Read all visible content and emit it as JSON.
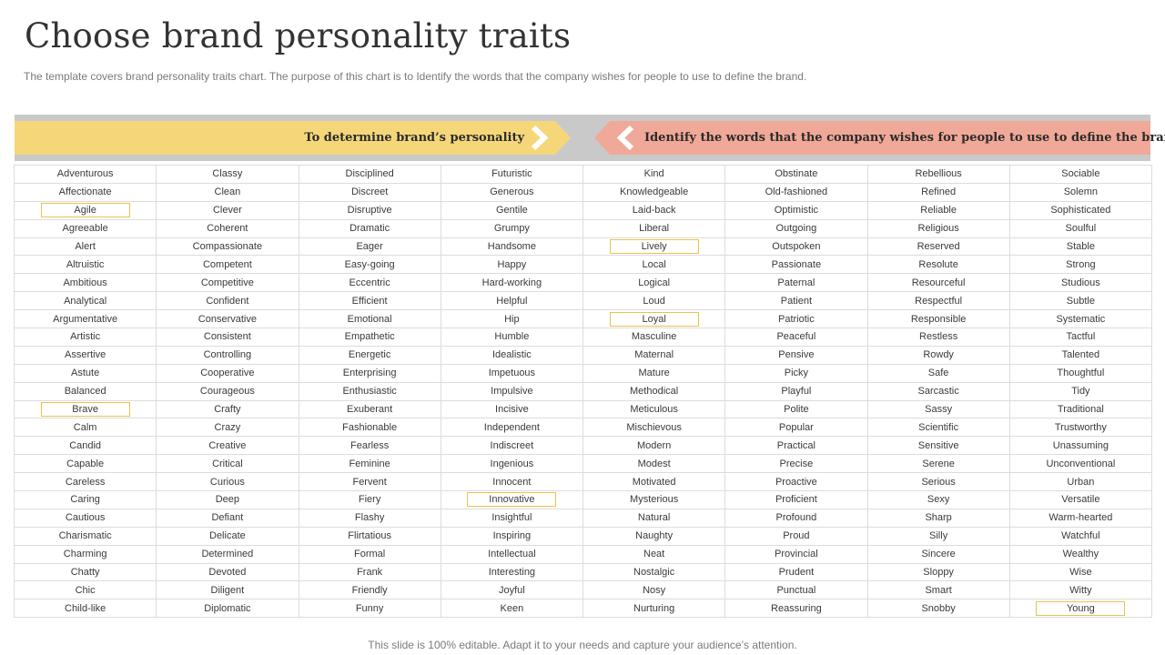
{
  "title": "Choose brand personality traits",
  "subtitle": "The template covers brand personality traits chart. The purpose of this chart is to Identify the words that the company wishes for people to use to define the brand.",
  "banner": {
    "left_label": "To determine brand’s personality",
    "right_label": "Identify the words that the company wishes for people to use to define the brand",
    "left_color": "#f5d77a",
    "right_color": "#f0a898",
    "band_color": "#c9c9c9",
    "arrow_icon_left": "chevron-right-icon",
    "arrow_icon_right": "chevron-left-icon"
  },
  "highlight_color": "#e8c44a",
  "columns": [
    {
      "words": [
        "Adventurous",
        "Affectionate",
        "Agile",
        "Agreeable",
        "Alert",
        "Altruistic",
        "Ambitious",
        "Analytical",
        "Argumentative",
        "Artistic",
        "Assertive",
        "Astute",
        "Balanced",
        "Brave",
        "Calm",
        "Candid",
        "Capable",
        "Careless",
        "Caring",
        "Cautious",
        "Charismatic",
        "Charming",
        "Chatty",
        "Chic",
        "Child-like"
      ],
      "highlighted": [
        "Agile",
        "Brave"
      ]
    },
    {
      "words": [
        "Classy",
        "Clean",
        "Clever",
        "Coherent",
        "Compassionate",
        "Competent",
        "Competitive",
        "Confident",
        "Conservative",
        "Consistent",
        "Controlling",
        "Cooperative",
        "Courageous",
        "Crafty",
        "Crazy",
        "Creative",
        "Critical",
        "Curious",
        "Deep",
        "Defiant",
        "Delicate",
        "Determined",
        "Devoted",
        "Diligent",
        "Diplomatic"
      ],
      "highlighted": []
    },
    {
      "words": [
        "Disciplined",
        "Discreet",
        "Disruptive",
        "Dramatic",
        "Eager",
        "Easy-going",
        "Eccentric",
        "Efficient",
        "Emotional",
        "Empathetic",
        "Energetic",
        "Enterprising",
        "Enthusiastic",
        "Exuberant",
        "Fashionable",
        "Fearless",
        "Feminine",
        "Fervent",
        "Fiery",
        "Flashy",
        "Flirtatious",
        "Formal",
        "Frank",
        "Friendly",
        "Funny"
      ],
      "highlighted": []
    },
    {
      "words": [
        "Futuristic",
        "Generous",
        "Gentile",
        "Grumpy",
        "Handsome",
        "Happy",
        "Hard-working",
        "Helpful",
        "Hip",
        "Humble",
        "Idealistic",
        "Impetuous",
        "Impulsive",
        "Incisive",
        "Independent",
        "Indiscreet",
        "Ingenious",
        "Innocent",
        "Innovative",
        "Insightful",
        "Inspiring",
        "Intellectual",
        "Interesting",
        "Joyful",
        "Keen"
      ],
      "highlighted": [
        "Innovative"
      ]
    },
    {
      "words": [
        "Kind",
        "Knowledgeable",
        "Laid-back",
        "Liberal",
        "Lively",
        "Local",
        "Logical",
        "Loud",
        "Loyal",
        "Masculine",
        "Maternal",
        "Mature",
        "Methodical",
        "Meticulous",
        "Mischievous",
        "Modern",
        "Modest",
        "Motivated",
        "Mysterious",
        "Natural",
        "Naughty",
        "Neat",
        "Nostalgic",
        "Nosy",
        "Nurturing"
      ],
      "highlighted": [
        "Lively",
        "Loyal"
      ]
    },
    {
      "words": [
        "Obstinate",
        "Old-fashioned",
        "Optimistic",
        "Outgoing",
        "Outspoken",
        "Passionate",
        "Paternal",
        "Patient",
        "Patriotic",
        "Peaceful",
        "Pensive",
        "Picky",
        "Playful",
        "Polite",
        "Popular",
        "Practical",
        "Precise",
        "Proactive",
        "Proficient",
        "Profound",
        "Proud",
        "Provincial",
        "Prudent",
        "Punctual",
        "Reassuring"
      ],
      "highlighted": []
    },
    {
      "words": [
        "Rebellious",
        "Refined",
        "Reliable",
        "Religious",
        "Reserved",
        "Resolute",
        "Resourceful",
        "Respectful",
        "Responsible",
        "Restless",
        "Rowdy",
        "Safe",
        "Sarcastic",
        "Sassy",
        "Scientific",
        "Sensitive",
        "Serene",
        "Serious",
        "Sexy",
        "Sharp",
        "Silly",
        "Sincere",
        "Sloppy",
        "Smart",
        "Snobby"
      ],
      "highlighted": []
    },
    {
      "words": [
        "Sociable",
        "Solemn",
        "Sophisticated",
        "Soulful",
        "Stable",
        "Strong",
        "Studious",
        "Subtle",
        "Systematic",
        "Tactful",
        "Talented",
        "Thoughtful",
        "Tidy",
        "Traditional",
        "Trustworthy",
        "Unassuming",
        "Unconventional",
        "Urban",
        "Versatile",
        "Warm-hearted",
        "Watchful",
        "Wealthy",
        "Wise",
        "Witty",
        "Young"
      ],
      "highlighted": [
        "Young"
      ]
    }
  ],
  "footer": "This slide is 100% editable. Adapt it to your needs and capture your audience’s attention."
}
